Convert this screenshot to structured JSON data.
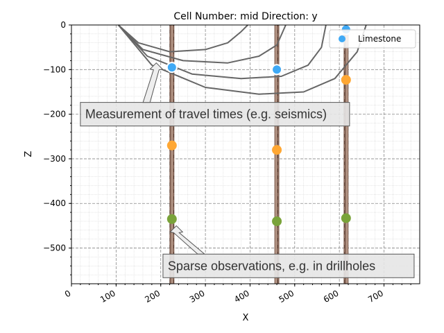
{
  "chart_data": {
    "type": "scatter",
    "title": "Cell Number: mid Direction: y",
    "xlabel": "X",
    "ylabel": "Z",
    "xlim": [
      0,
      780
    ],
    "ylim": [
      -580,
      0
    ],
    "xticks": [
      0,
      100,
      200,
      300,
      400,
      500,
      600,
      700
    ],
    "yticks": [
      0,
      -100,
      -200,
      -300,
      -400,
      -500
    ],
    "xtick_labels": [
      "0",
      "100",
      "200",
      "300",
      "400",
      "500",
      "600",
      "700"
    ],
    "ytick_labels": [
      "0",
      "−100",
      "−200",
      "−300",
      "−400",
      "−500"
    ],
    "grid": true,
    "legend": {
      "position": "top-right",
      "entries": [
        {
          "label": "Limestone",
          "color": "#3fa9f5"
        }
      ]
    },
    "drillholes_x": [
      225,
      460,
      615
    ],
    "series": [
      {
        "name": "Limestone",
        "color": "#3fa9f5",
        "edge": "#ffffff",
        "points": [
          {
            "x": 225,
            "y": -95
          },
          {
            "x": 460,
            "y": -100
          },
          {
            "x": 615,
            "y": -10
          }
        ]
      },
      {
        "color": "#ffa733",
        "points": [
          {
            "x": 225,
            "y": -270
          },
          {
            "x": 460,
            "y": -280
          },
          {
            "x": 615,
            "y": -123
          }
        ]
      },
      {
        "color": "#7aa33a",
        "points": [
          {
            "x": 225,
            "y": -435
          },
          {
            "x": 460,
            "y": -440
          },
          {
            "x": 615,
            "y": -433
          }
        ]
      }
    ],
    "curves": [
      [
        [
          105,
          0
        ],
        [
          150,
          -40
        ],
        [
          220,
          -60
        ],
        [
          300,
          -55
        ],
        [
          350,
          -40
        ],
        [
          380,
          -15
        ],
        [
          395,
          0
        ]
      ],
      [
        [
          105,
          0
        ],
        [
          160,
          -55
        ],
        [
          250,
          -80
        ],
        [
          350,
          -85
        ],
        [
          420,
          -70
        ],
        [
          460,
          -45
        ],
        [
          480,
          0
        ]
      ],
      [
        [
          105,
          0
        ],
        [
          170,
          -70
        ],
        [
          270,
          -110
        ],
        [
          380,
          -120
        ],
        [
          470,
          -115
        ],
        [
          530,
          -90
        ],
        [
          560,
          -50
        ],
        [
          570,
          0
        ]
      ],
      [
        [
          105,
          0
        ],
        [
          180,
          -90
        ],
        [
          300,
          -140
        ],
        [
          420,
          -155
        ],
        [
          520,
          -150
        ],
        [
          590,
          -120
        ],
        [
          640,
          -60
        ],
        [
          660,
          0
        ]
      ]
    ],
    "annotations": [
      {
        "text": "Measurement of travel times (e.g. seismics)",
        "box_x": 20,
        "box_y": -200,
        "arrow_to": [
          190,
          -85
        ]
      },
      {
        "text": "Sparse observations, e.g. in drillholes",
        "box_x": 205,
        "box_y": -540,
        "arrow_to": [
          235,
          -450
        ]
      }
    ]
  }
}
